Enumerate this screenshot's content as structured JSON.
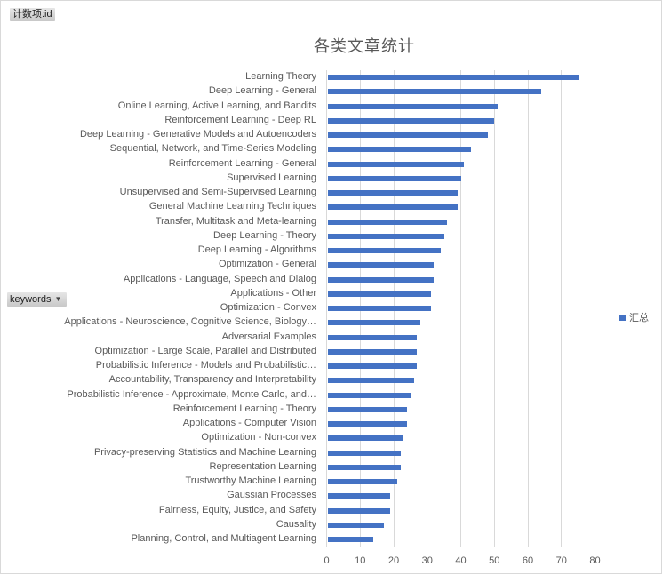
{
  "pivot": {
    "value_field": "计数项:id",
    "row_field": "keywords",
    "row_field_icon": "dropdown-arrow-icon"
  },
  "legend": {
    "label": "汇总",
    "color": "#4472c4"
  },
  "chart_data": {
    "type": "bar",
    "orientation": "horizontal",
    "title": "各类文章统计",
    "xlabel": "",
    "ylabel": "keywords",
    "xlim": [
      0,
      80
    ],
    "x_ticks": [
      0,
      10,
      20,
      30,
      40,
      50,
      60,
      70,
      80
    ],
    "grid": true,
    "legend_position": "right",
    "bar_color": "#4472c4",
    "categories": [
      "Learning Theory",
      "Deep Learning - General",
      "Online Learning, Active Learning, and Bandits",
      "Reinforcement Learning - Deep RL",
      "Deep Learning - Generative Models and Autoencoders",
      "Sequential, Network, and Time-Series Modeling",
      "Reinforcement Learning - General",
      "Supervised Learning",
      "Unsupervised and Semi-Supervised Learning",
      "General Machine Learning Techniques",
      "Transfer, Multitask and Meta-learning",
      "Deep Learning - Theory",
      "Deep Learning - Algorithms",
      "Optimization - General",
      "Applications - Language, Speech and Dialog",
      "Applications - Other",
      "Optimization - Convex",
      "Applications - Neuroscience, Cognitive Science, Biology…",
      "Adversarial Examples",
      "Optimization - Large Scale, Parallel and Distributed",
      "Probabilistic Inference - Models and Probabilistic…",
      "Accountability, Transparency and Interpretability",
      "Probabilistic Inference - Approximate, Monte Carlo, and…",
      "Reinforcement Learning - Theory",
      "Applications - Computer Vision",
      "Optimization - Non-convex",
      "Privacy-preserving Statistics and Machine Learning",
      "Representation Learning",
      "Trustworthy Machine Learning",
      "Gaussian Processes",
      "Fairness, Equity, Justice, and Safety",
      "Causality",
      "Planning, Control, and Multiagent Learning"
    ],
    "series": [
      {
        "name": "汇总",
        "values": [
          75,
          64,
          51,
          50,
          48,
          43,
          41,
          40,
          39,
          39,
          36,
          35,
          34,
          32,
          32,
          31,
          31,
          28,
          27,
          27,
          27,
          26,
          25,
          24,
          24,
          23,
          22,
          22,
          21,
          19,
          19,
          17,
          14
        ]
      }
    ]
  }
}
